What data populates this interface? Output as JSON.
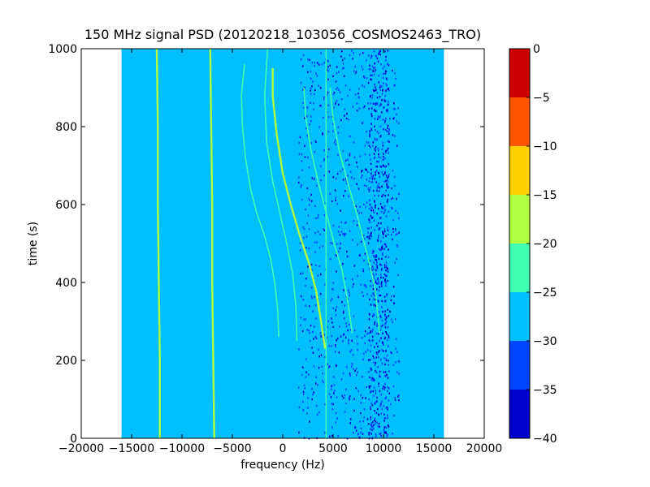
{
  "figure": {
    "title": "150 MHz signal PSD (20120218_103056_COSMOS2463_TRO)",
    "xlabel": "frequency (Hz)",
    "ylabel": "time (s)"
  },
  "chart_data": {
    "type": "heatmap",
    "title": "150 MHz signal PSD (20120218_103056_COSMOS2463_TRO)",
    "xlabel": "frequency (Hz)",
    "ylabel": "time (s)",
    "xlim": [
      -20000,
      20000
    ],
    "ylim": [
      0,
      1000
    ],
    "xticks": [
      -20000,
      -15000,
      -10000,
      -5000,
      0,
      5000,
      10000,
      15000,
      20000
    ],
    "xtick_labels": [
      "−20000",
      "−15000",
      "−10000",
      "−5000",
      "0",
      "5000",
      "10000",
      "15000",
      "20000"
    ],
    "yticks": [
      0,
      200,
      400,
      600,
      800,
      1000
    ],
    "ytick_labels": [
      "0",
      "200",
      "400",
      "600",
      "800",
      "1000"
    ],
    "data_extent_x": [
      -16000,
      16000
    ],
    "data_extent_y": [
      0,
      1000
    ],
    "background_level": -27,
    "noise_band_hz": [
      1500,
      11500
    ],
    "deep_noise_band_hz": [
      8500,
      10500
    ],
    "colorbar": {
      "levels": [
        -40,
        -35,
        -30,
        -25,
        -20,
        -15,
        -10,
        -5,
        0
      ],
      "tick_labels": [
        "0",
        "−5",
        "−10",
        "−15",
        "−20",
        "−25",
        "−30",
        "−35",
        "−40"
      ],
      "colors": [
        "#0000cd",
        "#0044ff",
        "#00bfff",
        "#40ffb0",
        "#b0ff40",
        "#ffd000",
        "#ff5500",
        "#cc0000"
      ]
    },
    "series": [
      {
        "kind": "constant",
        "level": -18,
        "points": [
          [
            -12200,
            0
          ],
          [
            -12200,
            200
          ],
          [
            -12300,
            400
          ],
          [
            -12400,
            600
          ],
          [
            -12400,
            800
          ],
          [
            -12500,
            1000
          ]
        ]
      },
      {
        "kind": "constant",
        "level": -16,
        "points": [
          [
            -6800,
            0
          ],
          [
            -6900,
            200
          ],
          [
            -7000,
            400
          ],
          [
            -7000,
            600
          ],
          [
            -7100,
            800
          ],
          [
            -7200,
            1000
          ]
        ]
      },
      {
        "kind": "constant",
        "level": -24,
        "points": [
          [
            4300,
            0
          ],
          [
            4300,
            1000
          ]
        ]
      },
      {
        "kind": "doppler",
        "level": -22,
        "points": [
          [
            -3800,
            960
          ],
          [
            -4100,
            880
          ],
          [
            -4000,
            800
          ],
          [
            -3700,
            720
          ],
          [
            -3200,
            640
          ],
          [
            -2600,
            580
          ],
          [
            -1800,
            520
          ],
          [
            -1200,
            460
          ],
          [
            -800,
            400
          ],
          [
            -500,
            330
          ],
          [
            -400,
            260
          ]
        ]
      },
      {
        "kind": "doppler",
        "level": -22,
        "points": [
          [
            -1500,
            1000
          ],
          [
            -1800,
            880
          ],
          [
            -1600,
            760
          ],
          [
            -1000,
            660
          ],
          [
            -300,
            580
          ],
          [
            400,
            500
          ],
          [
            1000,
            420
          ],
          [
            1300,
            340
          ],
          [
            1400,
            250
          ]
        ]
      },
      {
        "kind": "doppler",
        "level": -16,
        "points": [
          [
            -1000,
            950
          ],
          [
            -1000,
            880
          ],
          [
            -600,
            780
          ],
          [
            0,
            680
          ],
          [
            800,
            600
          ],
          [
            1700,
            520
          ],
          [
            2600,
            450
          ],
          [
            3300,
            380
          ],
          [
            3800,
            300
          ],
          [
            4200,
            230
          ]
        ]
      },
      {
        "kind": "doppler",
        "level": -22,
        "points": [
          [
            2100,
            900
          ],
          [
            2300,
            820
          ],
          [
            2800,
            740
          ],
          [
            3500,
            660
          ],
          [
            4300,
            580
          ],
          [
            5100,
            500
          ],
          [
            5900,
            430
          ],
          [
            6400,
            360
          ],
          [
            6900,
            270
          ]
        ]
      },
      {
        "kind": "doppler",
        "level": -22,
        "points": [
          [
            4700,
            900
          ],
          [
            5000,
            820
          ],
          [
            5600,
            740
          ],
          [
            6400,
            660
          ],
          [
            7300,
            580
          ],
          [
            8000,
            510
          ],
          [
            8600,
            450
          ],
          [
            9200,
            380
          ],
          [
            9600,
            270
          ]
        ]
      }
    ]
  }
}
